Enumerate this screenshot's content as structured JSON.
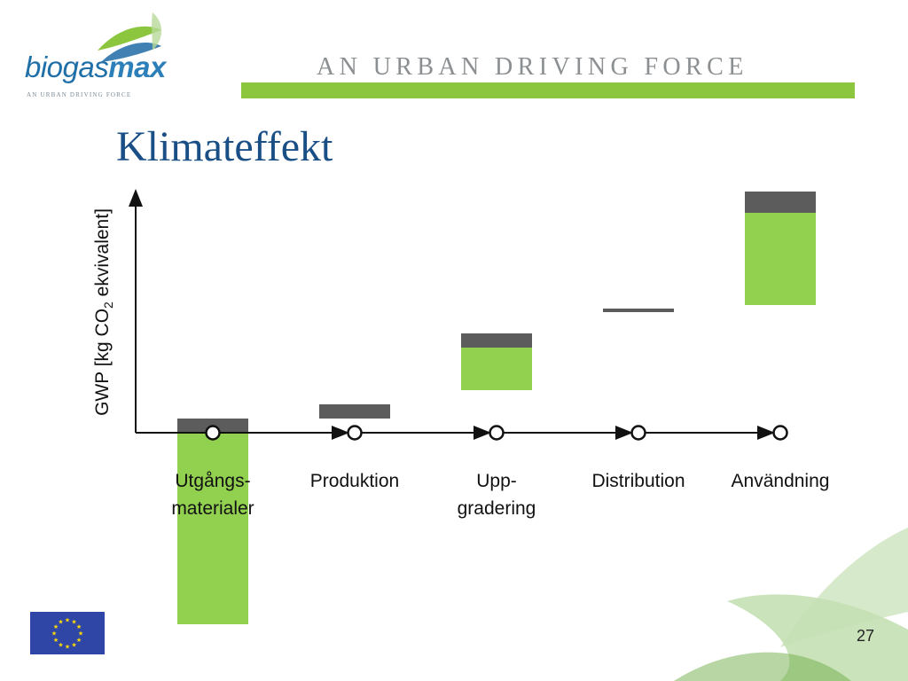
{
  "header": {
    "logo_text_a": "biogas",
    "logo_text_b": "max",
    "logo_tagline": "AN URBAN DRIVING FORCE",
    "tagline": "AN URBAN DRIVING FORCE",
    "bar_color": "#8cc63f"
  },
  "title": "Klimateffekt",
  "chart_data": {
    "type": "waterfall",
    "ylabel_prefix": "GWP [kg CO",
    "ylabel_sub": "2",
    "ylabel_suffix": " ekvivalent]",
    "categories": [
      "Utgångs-\nmaterialer",
      "Produktion",
      "Upp-\ngradering",
      "Distribution",
      "Användning"
    ],
    "series": [
      {
        "color": "#5c5c5c",
        "segments": [
          [
            0,
            2
          ],
          [
            2,
            4
          ],
          [
            12,
            14
          ],
          [
            17,
            17.5
          ],
          [
            31,
            34
          ]
        ]
      },
      {
        "color": "#92d050",
        "segments": [
          [
            -27,
            0
          ],
          null,
          [
            6,
            12
          ],
          null,
          [
            18,
            31
          ]
        ]
      }
    ],
    "ylim": [
      -28,
      34.5
    ],
    "colors": {
      "gray": "#5c5c5c",
      "green": "#92d050"
    }
  },
  "footer": {
    "page_number": "27",
    "eu_flag": "eu-flag-icon"
  }
}
